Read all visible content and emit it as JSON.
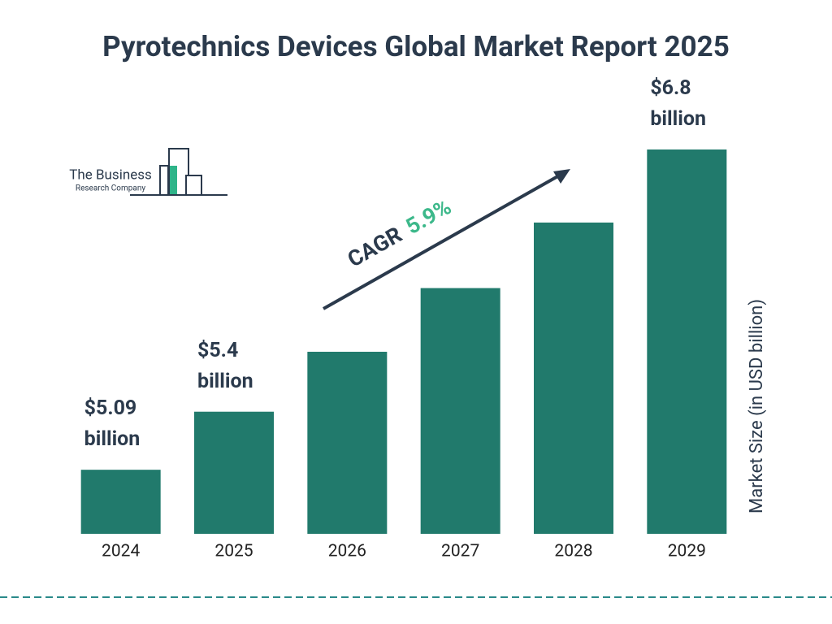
{
  "chart_data": {
    "type": "bar",
    "title": "Pyrotechnics Devices Global Market Report 2025",
    "categories": [
      "2024",
      "2025",
      "2026",
      "2027",
      "2028",
      "2029"
    ],
    "values": [
      5.09,
      5.4,
      5.72,
      6.06,
      6.41,
      6.8
    ],
    "value_labels": [
      "$5.09 billion",
      "$5.4 billion",
      null,
      null,
      null,
      "$6.8 billion"
    ],
    "color": "#217a6c",
    "y_axis_label": "Market Size (in USD billion)",
    "annotation": {
      "label": "CAGR",
      "value": "5.9%"
    },
    "logo": {
      "name": "The Business",
      "subname": "Research Company"
    }
  }
}
